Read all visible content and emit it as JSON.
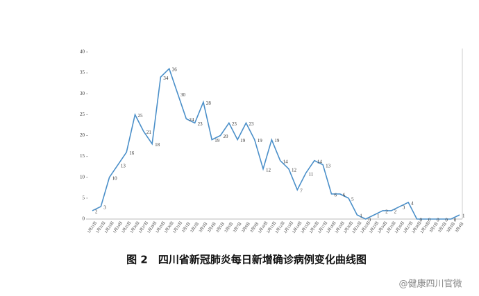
{
  "chart_data": {
    "type": "line",
    "title": "图 2　四川省新冠肺炎每日新增确诊病例变化曲线图",
    "categories": [
      "1月21日",
      "1月22日",
      "1月23日",
      "1月24日",
      "1月25日",
      "1月26日",
      "1月27日",
      "1月28日",
      "1月29日",
      "1月30日",
      "1月31日",
      "2月1日",
      "2月2日",
      "2月3日",
      "2月4日",
      "2月5日",
      "2月6日",
      "2月7日",
      "2月8日",
      "2月9日",
      "2月10日",
      "2月11日",
      "2月12日",
      "2月13日",
      "2月14日",
      "2月15日",
      "2月16日",
      "2月17日",
      "2月18日",
      "2月19日",
      "2月20日",
      "2月21日",
      "2月22日",
      "2月23日",
      "2月24日",
      "2月25日",
      "2月26日",
      "2月27日",
      "2月28日",
      "2月29日",
      "3月1日",
      "3月2日",
      "3月3日",
      "3月4日"
    ],
    "series": [
      {
        "name": "每日新增确诊病例",
        "color": "#4a8fc9",
        "values": [
          2,
          3,
          10,
          13,
          16,
          25,
          21,
          18,
          34,
          36,
          30,
          24,
          23,
          28,
          19,
          20,
          23,
          19,
          23,
          19,
          12,
          19,
          14,
          12,
          7,
          11,
          14,
          13,
          6,
          6,
          5,
          1,
          0,
          1,
          2,
          2,
          3,
          4,
          0,
          0,
          0,
          0,
          0,
          1
        ]
      }
    ],
    "ylim": [
      0,
      40
    ],
    "yticks": [
      0,
      5,
      10,
      15,
      20,
      25,
      30,
      35,
      40
    ],
    "grid": false
  },
  "watermark": "@健康四川官微"
}
